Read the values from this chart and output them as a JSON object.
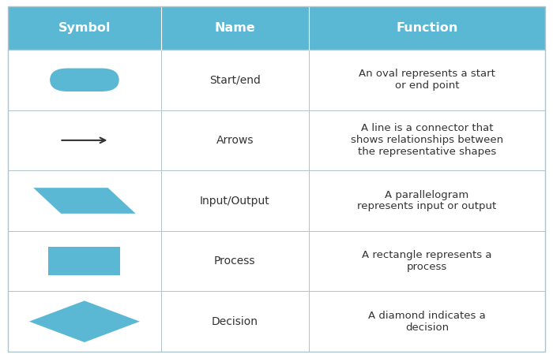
{
  "header_bg": "#5bb8d4",
  "header_text_color": "#ffffff",
  "border_color": "#b0c4cc",
  "shape_color": "#5bb8d4",
  "arrow_color": "#333333",
  "text_color": "#333333",
  "headers": [
    "Symbol",
    "Name",
    "Function"
  ],
  "rows": [
    {
      "name": "Start/end",
      "function": "An oval represents a start\nor end point",
      "shape": "oval"
    },
    {
      "name": "Arrows",
      "function": "A line is a connector that\nshows relationships between\nthe representative shapes",
      "shape": "arrow"
    },
    {
      "name": "Input/Output",
      "function": "A parallelogram\nrepresents input or output",
      "shape": "parallelogram"
    },
    {
      "name": "Process",
      "function": "A rectangle represents a\nprocess",
      "shape": "rectangle"
    },
    {
      "name": "Decision",
      "function": "A diamond indicates a\ndecision",
      "shape": "diamond"
    }
  ],
  "font_size_header": 11.5,
  "font_size_name": 10,
  "font_size_function": 9.5,
  "fig_width": 7.0,
  "fig_height": 4.54,
  "dpi": 100
}
